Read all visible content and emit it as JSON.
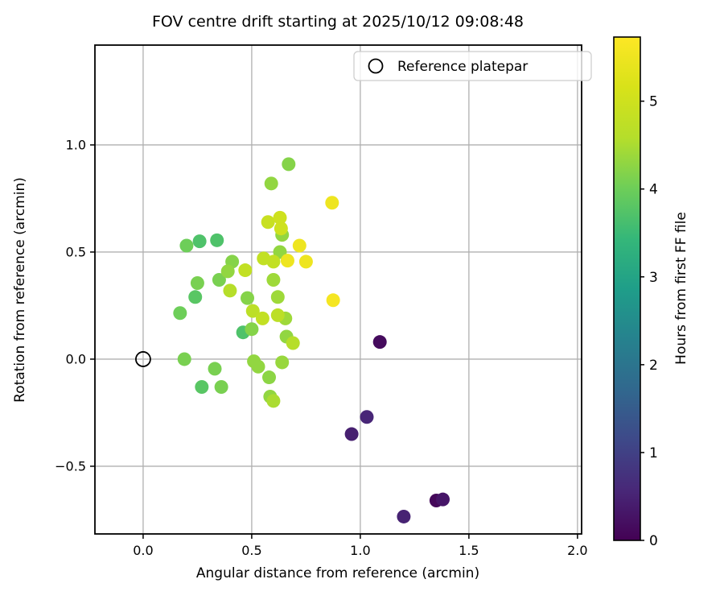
{
  "figure": {
    "title": "FOV centre drift starting at 2025/10/12 09:08:48",
    "background": "#ffffff"
  },
  "axes": {
    "xlabel": "Angular distance from reference (arcmin)",
    "ylabel": "Rotation from reference (arcmin)",
    "xlim": [
      -0.222,
      2.019
    ],
    "ylim": [
      -0.816,
      1.466
    ],
    "xtick_labels": [
      "0.0",
      "0.5",
      "1.0",
      "1.5",
      "2.0"
    ],
    "xtick_values": [
      0.0,
      0.5,
      1.0,
      1.5,
      2.0
    ],
    "ytick_labels": [
      "1.0",
      "0.5",
      "0.0",
      "−0.5"
    ],
    "ytick_values": [
      1.0,
      0.5,
      0.0,
      -0.5
    ],
    "grid": true,
    "grid_color": "#b0b0b0",
    "spine_color": "#000000"
  },
  "legend": {
    "label": "Reference platepar",
    "marker": "open-circle",
    "border_color": "#cccccc"
  },
  "colorbar": {
    "label": "Hours from first FF file",
    "tick_labels": [
      "0",
      "1",
      "2",
      "3",
      "4",
      "5"
    ],
    "tick_values": [
      0,
      1,
      2,
      3,
      4,
      5
    ],
    "vmin": 0,
    "vmax": 5.73,
    "colormap": "viridis"
  },
  "chart_data": {
    "type": "scatter",
    "title": "FOV centre drift starting at 2025/10/12 09:08:48",
    "xlabel": "Angular distance from reference (arcmin)",
    "ylabel": "Rotation from reference (arcmin)",
    "color_label": "Hours from first FF file",
    "xlim": [
      -0.222,
      2.019
    ],
    "ylim": [
      -0.816,
      1.466
    ],
    "colormap_stops": [
      [
        0.0,
        "#440154"
      ],
      [
        0.1,
        "#482878"
      ],
      [
        0.2,
        "#3e4989"
      ],
      [
        0.3,
        "#31688e"
      ],
      [
        0.4,
        "#26828e"
      ],
      [
        0.5,
        "#1f9e89"
      ],
      [
        0.6,
        "#35b779"
      ],
      [
        0.7,
        "#6ece58"
      ],
      [
        0.8,
        "#b5de2b"
      ],
      [
        0.9,
        "#d8e219"
      ],
      [
        1.0,
        "#fde725"
      ]
    ],
    "series": [
      {
        "name": "FOV centre positions",
        "marker": "filled-circle",
        "color_by": "hours",
        "points": [
          {
            "x": 0.67,
            "y": 0.91,
            "hours": 4.2
          },
          {
            "x": 0.59,
            "y": 0.82,
            "hours": 4.3
          },
          {
            "x": 0.87,
            "y": 0.73,
            "hours": 5.5
          },
          {
            "x": 0.63,
            "y": 0.66,
            "hours": 5.0
          },
          {
            "x": 0.575,
            "y": 0.64,
            "hours": 4.9
          },
          {
            "x": 0.635,
            "y": 0.61,
            "hours": 5.0
          },
          {
            "x": 0.64,
            "y": 0.58,
            "hours": 4.3
          },
          {
            "x": 0.34,
            "y": 0.555,
            "hours": 3.7
          },
          {
            "x": 0.26,
            "y": 0.55,
            "hours": 3.7
          },
          {
            "x": 0.2,
            "y": 0.53,
            "hours": 4.0
          },
          {
            "x": 0.72,
            "y": 0.53,
            "hours": 5.5
          },
          {
            "x": 0.63,
            "y": 0.5,
            "hours": 4.3
          },
          {
            "x": 0.555,
            "y": 0.47,
            "hours": 4.8
          },
          {
            "x": 0.6,
            "y": 0.455,
            "hours": 4.8
          },
          {
            "x": 0.665,
            "y": 0.46,
            "hours": 5.5
          },
          {
            "x": 0.75,
            "y": 0.455,
            "hours": 5.5
          },
          {
            "x": 0.41,
            "y": 0.455,
            "hours": 4.2
          },
          {
            "x": 0.39,
            "y": 0.41,
            "hours": 4.3
          },
          {
            "x": 0.47,
            "y": 0.415,
            "hours": 4.8
          },
          {
            "x": 0.35,
            "y": 0.37,
            "hours": 4.1
          },
          {
            "x": 0.25,
            "y": 0.355,
            "hours": 4.1
          },
          {
            "x": 0.6,
            "y": 0.37,
            "hours": 4.4
          },
          {
            "x": 0.4,
            "y": 0.32,
            "hours": 4.6
          },
          {
            "x": 0.24,
            "y": 0.29,
            "hours": 3.8
          },
          {
            "x": 0.48,
            "y": 0.285,
            "hours": 4.2
          },
          {
            "x": 0.62,
            "y": 0.29,
            "hours": 4.4
          },
          {
            "x": 0.875,
            "y": 0.275,
            "hours": 5.6
          },
          {
            "x": 0.17,
            "y": 0.215,
            "hours": 4.0
          },
          {
            "x": 0.505,
            "y": 0.225,
            "hours": 4.7
          },
          {
            "x": 0.55,
            "y": 0.19,
            "hours": 4.8
          },
          {
            "x": 0.62,
            "y": 0.205,
            "hours": 4.7
          },
          {
            "x": 0.655,
            "y": 0.19,
            "hours": 4.4
          },
          {
            "x": 0.46,
            "y": 0.125,
            "hours": 3.7
          },
          {
            "x": 0.5,
            "y": 0.14,
            "hours": 4.2
          },
          {
            "x": 0.66,
            "y": 0.105,
            "hours": 4.3
          },
          {
            "x": 0.69,
            "y": 0.075,
            "hours": 4.6
          },
          {
            "x": 0.19,
            "y": 0.0,
            "hours": 4.1
          },
          {
            "x": 0.33,
            "y": -0.045,
            "hours": 4.1
          },
          {
            "x": 0.51,
            "y": -0.01,
            "hours": 4.3
          },
          {
            "x": 0.53,
            "y": -0.035,
            "hours": 4.3
          },
          {
            "x": 0.64,
            "y": -0.015,
            "hours": 4.35
          },
          {
            "x": 0.58,
            "y": -0.085,
            "hours": 4.25
          },
          {
            "x": 0.27,
            "y": -0.13,
            "hours": 3.8
          },
          {
            "x": 0.36,
            "y": -0.13,
            "hours": 4.1
          },
          {
            "x": 0.585,
            "y": -0.175,
            "hours": 4.3
          },
          {
            "x": 0.6,
            "y": -0.195,
            "hours": 4.5
          },
          {
            "x": 1.09,
            "y": 0.08,
            "hours": 0.15
          },
          {
            "x": 1.03,
            "y": -0.27,
            "hours": 0.55
          },
          {
            "x": 0.96,
            "y": -0.35,
            "hours": 0.45
          },
          {
            "x": 1.35,
            "y": -0.66,
            "hours": 0.1
          },
          {
            "x": 1.38,
            "y": -0.655,
            "hours": 0.3
          },
          {
            "x": 1.2,
            "y": -0.735,
            "hours": 0.5
          }
        ]
      },
      {
        "name": "Reference platepar",
        "marker": "open-circle",
        "points": [
          {
            "x": 0.0,
            "y": 0.0
          }
        ]
      }
    ]
  }
}
